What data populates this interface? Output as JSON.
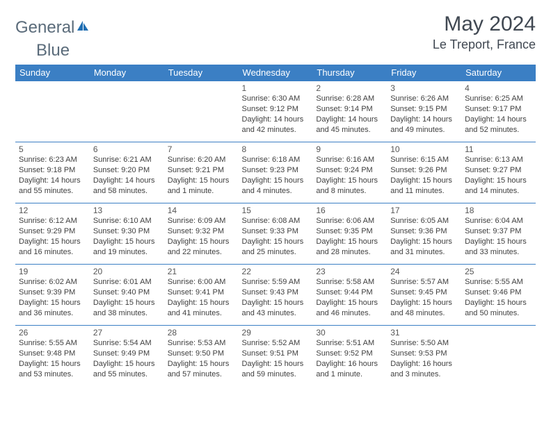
{
  "logo": {
    "text1": "General",
    "text2": "Blue"
  },
  "title": "May 2024",
  "location": "Le Treport, France",
  "colors": {
    "header_bg": "#3b7fc4",
    "header_text": "#ffffff",
    "border": "#3b7fc4",
    "body_text": "#404040",
    "title_text": "#404852",
    "logo_gray": "#5a6b7a",
    "logo_blue": "#1f6fb3"
  },
  "weekdays": [
    "Sunday",
    "Monday",
    "Tuesday",
    "Wednesday",
    "Thursday",
    "Friday",
    "Saturday"
  ],
  "weeks": [
    [
      null,
      null,
      null,
      {
        "day": "1",
        "sunrise": "Sunrise: 6:30 AM",
        "sunset": "Sunset: 9:12 PM",
        "daylight1": "Daylight: 14 hours",
        "daylight2": "and 42 minutes."
      },
      {
        "day": "2",
        "sunrise": "Sunrise: 6:28 AM",
        "sunset": "Sunset: 9:14 PM",
        "daylight1": "Daylight: 14 hours",
        "daylight2": "and 45 minutes."
      },
      {
        "day": "3",
        "sunrise": "Sunrise: 6:26 AM",
        "sunset": "Sunset: 9:15 PM",
        "daylight1": "Daylight: 14 hours",
        "daylight2": "and 49 minutes."
      },
      {
        "day": "4",
        "sunrise": "Sunrise: 6:25 AM",
        "sunset": "Sunset: 9:17 PM",
        "daylight1": "Daylight: 14 hours",
        "daylight2": "and 52 minutes."
      }
    ],
    [
      {
        "day": "5",
        "sunrise": "Sunrise: 6:23 AM",
        "sunset": "Sunset: 9:18 PM",
        "daylight1": "Daylight: 14 hours",
        "daylight2": "and 55 minutes."
      },
      {
        "day": "6",
        "sunrise": "Sunrise: 6:21 AM",
        "sunset": "Sunset: 9:20 PM",
        "daylight1": "Daylight: 14 hours",
        "daylight2": "and 58 minutes."
      },
      {
        "day": "7",
        "sunrise": "Sunrise: 6:20 AM",
        "sunset": "Sunset: 9:21 PM",
        "daylight1": "Daylight: 15 hours",
        "daylight2": "and 1 minute."
      },
      {
        "day": "8",
        "sunrise": "Sunrise: 6:18 AM",
        "sunset": "Sunset: 9:23 PM",
        "daylight1": "Daylight: 15 hours",
        "daylight2": "and 4 minutes."
      },
      {
        "day": "9",
        "sunrise": "Sunrise: 6:16 AM",
        "sunset": "Sunset: 9:24 PM",
        "daylight1": "Daylight: 15 hours",
        "daylight2": "and 8 minutes."
      },
      {
        "day": "10",
        "sunrise": "Sunrise: 6:15 AM",
        "sunset": "Sunset: 9:26 PM",
        "daylight1": "Daylight: 15 hours",
        "daylight2": "and 11 minutes."
      },
      {
        "day": "11",
        "sunrise": "Sunrise: 6:13 AM",
        "sunset": "Sunset: 9:27 PM",
        "daylight1": "Daylight: 15 hours",
        "daylight2": "and 14 minutes."
      }
    ],
    [
      {
        "day": "12",
        "sunrise": "Sunrise: 6:12 AM",
        "sunset": "Sunset: 9:29 PM",
        "daylight1": "Daylight: 15 hours",
        "daylight2": "and 16 minutes."
      },
      {
        "day": "13",
        "sunrise": "Sunrise: 6:10 AM",
        "sunset": "Sunset: 9:30 PM",
        "daylight1": "Daylight: 15 hours",
        "daylight2": "and 19 minutes."
      },
      {
        "day": "14",
        "sunrise": "Sunrise: 6:09 AM",
        "sunset": "Sunset: 9:32 PM",
        "daylight1": "Daylight: 15 hours",
        "daylight2": "and 22 minutes."
      },
      {
        "day": "15",
        "sunrise": "Sunrise: 6:08 AM",
        "sunset": "Sunset: 9:33 PM",
        "daylight1": "Daylight: 15 hours",
        "daylight2": "and 25 minutes."
      },
      {
        "day": "16",
        "sunrise": "Sunrise: 6:06 AM",
        "sunset": "Sunset: 9:35 PM",
        "daylight1": "Daylight: 15 hours",
        "daylight2": "and 28 minutes."
      },
      {
        "day": "17",
        "sunrise": "Sunrise: 6:05 AM",
        "sunset": "Sunset: 9:36 PM",
        "daylight1": "Daylight: 15 hours",
        "daylight2": "and 31 minutes."
      },
      {
        "day": "18",
        "sunrise": "Sunrise: 6:04 AM",
        "sunset": "Sunset: 9:37 PM",
        "daylight1": "Daylight: 15 hours",
        "daylight2": "and 33 minutes."
      }
    ],
    [
      {
        "day": "19",
        "sunrise": "Sunrise: 6:02 AM",
        "sunset": "Sunset: 9:39 PM",
        "daylight1": "Daylight: 15 hours",
        "daylight2": "and 36 minutes."
      },
      {
        "day": "20",
        "sunrise": "Sunrise: 6:01 AM",
        "sunset": "Sunset: 9:40 PM",
        "daylight1": "Daylight: 15 hours",
        "daylight2": "and 38 minutes."
      },
      {
        "day": "21",
        "sunrise": "Sunrise: 6:00 AM",
        "sunset": "Sunset: 9:41 PM",
        "daylight1": "Daylight: 15 hours",
        "daylight2": "and 41 minutes."
      },
      {
        "day": "22",
        "sunrise": "Sunrise: 5:59 AM",
        "sunset": "Sunset: 9:43 PM",
        "daylight1": "Daylight: 15 hours",
        "daylight2": "and 43 minutes."
      },
      {
        "day": "23",
        "sunrise": "Sunrise: 5:58 AM",
        "sunset": "Sunset: 9:44 PM",
        "daylight1": "Daylight: 15 hours",
        "daylight2": "and 46 minutes."
      },
      {
        "day": "24",
        "sunrise": "Sunrise: 5:57 AM",
        "sunset": "Sunset: 9:45 PM",
        "daylight1": "Daylight: 15 hours",
        "daylight2": "and 48 minutes."
      },
      {
        "day": "25",
        "sunrise": "Sunrise: 5:55 AM",
        "sunset": "Sunset: 9:46 PM",
        "daylight1": "Daylight: 15 hours",
        "daylight2": "and 50 minutes."
      }
    ],
    [
      {
        "day": "26",
        "sunrise": "Sunrise: 5:55 AM",
        "sunset": "Sunset: 9:48 PM",
        "daylight1": "Daylight: 15 hours",
        "daylight2": "and 53 minutes."
      },
      {
        "day": "27",
        "sunrise": "Sunrise: 5:54 AM",
        "sunset": "Sunset: 9:49 PM",
        "daylight1": "Daylight: 15 hours",
        "daylight2": "and 55 minutes."
      },
      {
        "day": "28",
        "sunrise": "Sunrise: 5:53 AM",
        "sunset": "Sunset: 9:50 PM",
        "daylight1": "Daylight: 15 hours",
        "daylight2": "and 57 minutes."
      },
      {
        "day": "29",
        "sunrise": "Sunrise: 5:52 AM",
        "sunset": "Sunset: 9:51 PM",
        "daylight1": "Daylight: 15 hours",
        "daylight2": "and 59 minutes."
      },
      {
        "day": "30",
        "sunrise": "Sunrise: 5:51 AM",
        "sunset": "Sunset: 9:52 PM",
        "daylight1": "Daylight: 16 hours",
        "daylight2": "and 1 minute."
      },
      {
        "day": "31",
        "sunrise": "Sunrise: 5:50 AM",
        "sunset": "Sunset: 9:53 PM",
        "daylight1": "Daylight: 16 hours",
        "daylight2": "and 3 minutes."
      },
      null
    ]
  ]
}
